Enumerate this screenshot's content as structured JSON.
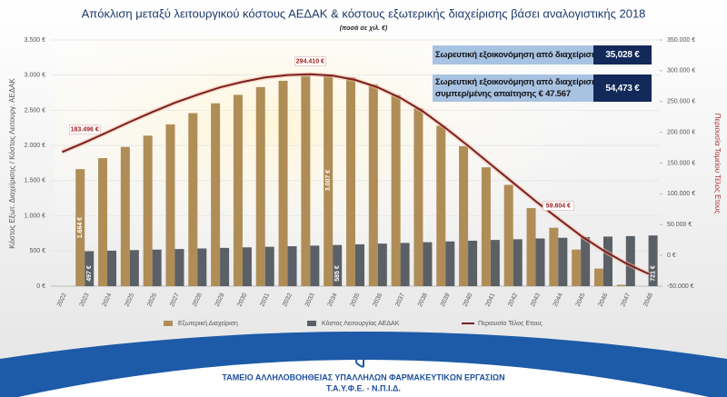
{
  "chart_data": {
    "type": "bar",
    "title": "Απόκλιση μεταξύ λειτουργικού κόστους ΑΕΔΑΚ & κόστους εξωτερικής διαχείρισης βάσει αναλογιστικής 2018",
    "subtitle": "(ποσά σε χιλ. €)",
    "y_label": "Κόστος Εξωτ. Διαχείρισης / Κόστος Λειτουργ. ΑΕΔΑΚ",
    "y2_label": "Περιουσία Ταμείου Τέλος Ετους",
    "categories": [
      "2022",
      "2023",
      "2024",
      "2025",
      "2026",
      "2027",
      "2028",
      "2029",
      "2030",
      "2031",
      "2032",
      "2033",
      "2034",
      "2035",
      "2036",
      "2037",
      "2038",
      "2039",
      "2040",
      "2041",
      "2042",
      "2043",
      "2044",
      "2045",
      "2046",
      "2047",
      "2048"
    ],
    "ylim": [
      0,
      3500
    ],
    "yticks": [
      {
        "value": 0,
        "label": "0 €"
      },
      {
        "value": 500,
        "label": "500 €"
      },
      {
        "value": 1000,
        "label": "1.000 €"
      },
      {
        "value": 1500,
        "label": "1.500 €"
      },
      {
        "value": 2000,
        "label": "2.000 €"
      },
      {
        "value": 2500,
        "label": "2.500 €"
      },
      {
        "value": 3000,
        "label": "3.000 €"
      },
      {
        "value": 3500,
        "label": "3.500 €"
      }
    ],
    "y2lim": [
      -50000,
      350000
    ],
    "y2ticks": [
      {
        "value": -50000,
        "label": "-50.000 €"
      },
      {
        "value": 0,
        "label": "0 €"
      },
      {
        "value": 50000,
        "label": "50.000 €"
      },
      {
        "value": 100000,
        "label": "100.000 €"
      },
      {
        "value": 150000,
        "label": "150.000 €"
      },
      {
        "value": 200000,
        "label": "200.000 €"
      },
      {
        "value": 250000,
        "label": "250.000 €"
      },
      {
        "value": 300000,
        "label": "300.000 €"
      },
      {
        "value": 350000,
        "label": "350.000 €"
      }
    ],
    "grid": true,
    "series": [
      {
        "name": "Εξωτερική Διαχείριση",
        "color": "#b08d57",
        "values": [
          null,
          1664,
          1820,
          1980,
          2140,
          2300,
          2460,
          2600,
          2720,
          2830,
          2920,
          2990,
          3007,
          2970,
          2870,
          2720,
          2530,
          2280,
          1990,
          1690,
          1440,
          1110,
          830,
          520,
          250,
          20,
          null
        ],
        "value_labels": [
          null,
          "1.664 €",
          null,
          null,
          null,
          null,
          null,
          null,
          null,
          null,
          null,
          null,
          "3.007 €",
          null,
          null,
          null,
          null,
          null,
          null,
          null,
          null,
          null,
          null,
          null,
          null,
          null,
          null
        ]
      },
      {
        "name": "Κόστος Λειτουργίας ΑΕΔΑΚ",
        "color": "#5a6066",
        "values": [
          null,
          497,
          505,
          513,
          520,
          528,
          536,
          544,
          552,
          560,
          568,
          576,
          585,
          595,
          605,
          615,
          625,
          636,
          646,
          657,
          667,
          678,
          688,
          699,
          705,
          712,
          721
        ],
        "value_labels": [
          null,
          "497 €",
          null,
          null,
          null,
          null,
          null,
          null,
          null,
          null,
          null,
          null,
          "585 €",
          null,
          null,
          null,
          null,
          null,
          null,
          null,
          null,
          null,
          null,
          null,
          null,
          null,
          "721 €"
        ]
      },
      {
        "name": "Περιουσία Τέλος Ετους",
        "color": "#7a1f1f",
        "type": "line",
        "axis": "y2",
        "values": [
          168000,
          183496,
          200000,
          217000,
          233000,
          248000,
          261000,
          273000,
          282000,
          289000,
          293000,
          294410,
          292000,
          285000,
          273000,
          256000,
          234000,
          207000,
          178000,
          148000,
          118000,
          88000,
          59804,
          32000,
          8000,
          -13000,
          -30000
        ],
        "value_labels": [
          null,
          "183.496 €",
          null,
          null,
          null,
          null,
          null,
          null,
          null,
          null,
          null,
          "294.410 €",
          null,
          null,
          null,
          null,
          null,
          null,
          null,
          null,
          null,
          null,
          "59.804 €",
          null,
          null,
          null,
          null
        ]
      }
    ],
    "annotations": [
      {
        "lines": [
          "Σωρευτική εξοικονόμηση από διαχείριση"
        ],
        "value": "35,028 €"
      },
      {
        "lines": [
          "Σωρευτική εξοικονόμηση από διαχείριση",
          "συμπερ/μένης απαίτησης € 47.567"
        ],
        "value": "54,473 €"
      }
    ]
  },
  "footer": {
    "line1": "ΤΑΜΕΙΟ ΑΛΛΗΛΟΒΟΗΘΕΙΑΣ ΥΠΑΛΛΗΛΩΝ ΦΑΡΜΑΚΕΥΤΙΚΩΝ ΕΡΓΑΣΙΩΝ",
    "line2": "Τ.Α.Υ.Φ.Ε. - Ν.Π.Ι.Δ."
  }
}
